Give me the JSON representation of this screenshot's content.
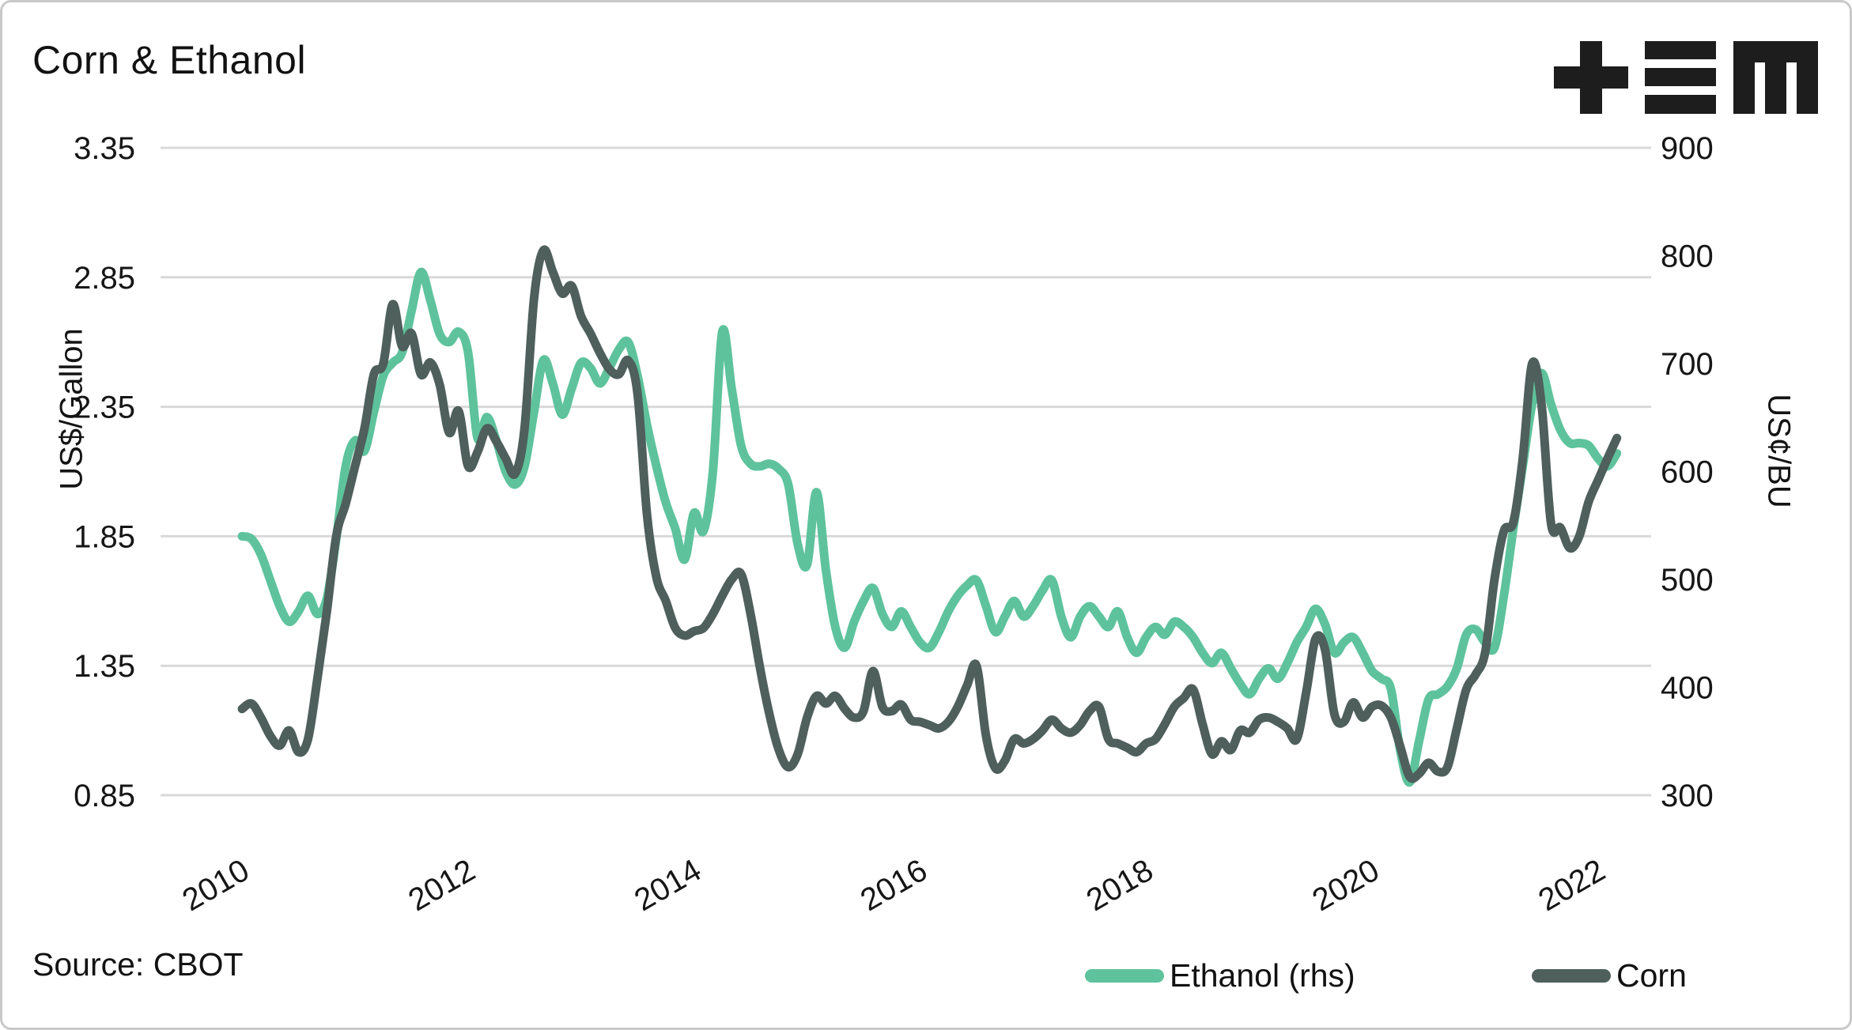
{
  "title": "Corn & Ethanol",
  "source": "Source: CBOT",
  "logo_icon": "plus-triple-bar-m-logo",
  "colors": {
    "ethanol": "#5ec39c",
    "corn": "#4e5f5c",
    "gridline": "#d9d9d9",
    "text": "#161616"
  },
  "legend": [
    {
      "label": "Ethanol (rhs)",
      "color": "#5ec39c"
    },
    {
      "label": "Corn",
      "color": "#4e5f5c"
    }
  ],
  "chart_data": {
    "type": "line",
    "title": "Corn & Ethanol",
    "grid": true,
    "legend_position": "bottom-right",
    "x_start": 2009.9167,
    "x_step_years": 0.0833333,
    "x_ticks": [
      "2010",
      "2012",
      "2014",
      "2016",
      "2018",
      "2020",
      "2022"
    ],
    "left_axis": {
      "label": "US$/Gallon",
      "ticks": [
        "3.35",
        "2.85",
        "2.35",
        "1.85",
        "1.35",
        "0.85"
      ]
    },
    "right_axis": {
      "label": "US¢/BU",
      "ticks": [
        "900",
        "800",
        "700",
        "600",
        "500",
        "400",
        "300"
      ]
    },
    "series": [
      {
        "name": "Ethanol (rhs)",
        "axis": "left",
        "color": "#5ec39c",
        "values": [
          1.85,
          1.84,
          1.78,
          1.68,
          1.58,
          1.52,
          1.56,
          1.62,
          1.55,
          1.61,
          1.84,
          2.12,
          2.22,
          2.18,
          2.33,
          2.47,
          2.52,
          2.56,
          2.72,
          2.87,
          2.76,
          2.63,
          2.6,
          2.64,
          2.56,
          2.23,
          2.31,
          2.22,
          2.1,
          2.05,
          2.12,
          2.33,
          2.53,
          2.44,
          2.32,
          2.42,
          2.52,
          2.5,
          2.44,
          2.5,
          2.57,
          2.6,
          2.47,
          2.28,
          2.12,
          1.98,
          1.88,
          1.76,
          1.94,
          1.87,
          2.1,
          2.64,
          2.42,
          2.2,
          2.13,
          2.12,
          2.13,
          2.11,
          2.05,
          1.82,
          1.74,
          2.02,
          1.72,
          1.5,
          1.42,
          1.52,
          1.6,
          1.65,
          1.55,
          1.5,
          1.56,
          1.5,
          1.44,
          1.42,
          1.48,
          1.56,
          1.62,
          1.66,
          1.68,
          1.58,
          1.48,
          1.54,
          1.6,
          1.54,
          1.58,
          1.64,
          1.68,
          1.54,
          1.46,
          1.54,
          1.58,
          1.54,
          1.5,
          1.56,
          1.46,
          1.4,
          1.46,
          1.5,
          1.47,
          1.52,
          1.5,
          1.46,
          1.4,
          1.36,
          1.4,
          1.34,
          1.28,
          1.24,
          1.3,
          1.34,
          1.3,
          1.36,
          1.44,
          1.5,
          1.57,
          1.51,
          1.4,
          1.44,
          1.46,
          1.4,
          1.33,
          1.3,
          1.26,
          1.02,
          0.9,
          1.06,
          1.22,
          1.24,
          1.27,
          1.34,
          1.47,
          1.49,
          1.44,
          1.42,
          1.62,
          1.88,
          2.12,
          2.36,
          2.48,
          2.36,
          2.26,
          2.21,
          2.21,
          2.2,
          2.15,
          2.12,
          2.17
        ]
      },
      {
        "name": "Corn",
        "axis": "right",
        "color": "#4e5f5c",
        "values": [
          380,
          385,
          372,
          355,
          346,
          360,
          340,
          352,
          408,
          470,
          540,
          570,
          605,
          640,
          690,
          700,
          755,
          716,
          728,
          690,
          701,
          680,
          636,
          656,
          605,
          618,
          640,
          628,
          612,
          598,
          640,
          760,
          805,
          785,
          765,
          772,
          744,
          728,
          710,
          695,
          690,
          703,
          672,
          560,
          502,
          480,
          455,
          448,
          452,
          455,
          468,
          485,
          500,
          505,
          468,
          418,
          375,
          342,
          326,
          338,
          372,
          392,
          385,
          392,
          380,
          372,
          378,
          415,
          382,
          378,
          384,
          370,
          368,
          365,
          362,
          368,
          382,
          402,
          420,
          355,
          325,
          332,
          352,
          348,
          352,
          360,
          370,
          362,
          358,
          365,
          378,
          382,
          352,
          348,
          344,
          340,
          348,
          352,
          366,
          382,
          390,
          398,
          366,
          338,
          350,
          342,
          360,
          358,
          370,
          372,
          368,
          362,
          352,
          395,
          445,
          435,
          375,
          368,
          386,
          372,
          382,
          383,
          372,
          345,
          317,
          320,
          330,
          322,
          326,
          362,
          398,
          412,
          432,
          500,
          545,
          553,
          612,
          700,
          662,
          552,
          548,
          529,
          540,
          572,
          592,
          612,
          631
        ]
      }
    ]
  }
}
